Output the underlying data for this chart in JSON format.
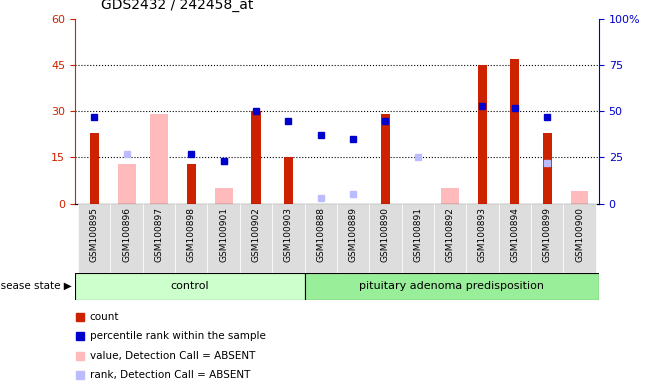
{
  "title": "GDS2432 / 242458_at",
  "samples": [
    "GSM100895",
    "GSM100896",
    "GSM100897",
    "GSM100898",
    "GSM100901",
    "GSM100902",
    "GSM100903",
    "GSM100888",
    "GSM100889",
    "GSM100890",
    "GSM100891",
    "GSM100892",
    "GSM100893",
    "GSM100894",
    "GSM100899",
    "GSM100900"
  ],
  "n_control": 7,
  "count": [
    23,
    0,
    0,
    13,
    0,
    30,
    15,
    0,
    0,
    29,
    0,
    0,
    45,
    47,
    23,
    0
  ],
  "percentile_rank": [
    47,
    0,
    0,
    27,
    23,
    50,
    45,
    37,
    35,
    45,
    0,
    0,
    53,
    52,
    47,
    0
  ],
  "absent_value": [
    0,
    13,
    29,
    0,
    5,
    0,
    0,
    0,
    0,
    0,
    0,
    5,
    0,
    0,
    0,
    4
  ],
  "absent_rank": [
    0,
    27,
    0,
    0,
    23,
    0,
    0,
    3,
    5,
    0,
    25,
    0,
    0,
    0,
    22,
    0
  ],
  "ylim_left": [
    0,
    60
  ],
  "ylim_right": [
    0,
    100
  ],
  "yticks_left": [
    0,
    15,
    30,
    45,
    60
  ],
  "yticks_right": [
    0,
    25,
    50,
    75,
    100
  ],
  "color_count": "#cc2200",
  "color_rank": "#0000cc",
  "color_absent_value": "#ffbbbb",
  "color_absent_rank": "#bbbbff",
  "color_control_bg": "#ccffcc",
  "color_adenoma_bg": "#99ee99",
  "color_sample_bg": "#dddddd",
  "legend_items": [
    {
      "label": "count",
      "color": "#cc2200"
    },
    {
      "label": "percentile rank within the sample",
      "color": "#0000cc"
    },
    {
      "label": "value, Detection Call = ABSENT",
      "color": "#ffbbbb"
    },
    {
      "label": "rank, Detection Call = ABSENT",
      "color": "#bbbbff"
    }
  ]
}
